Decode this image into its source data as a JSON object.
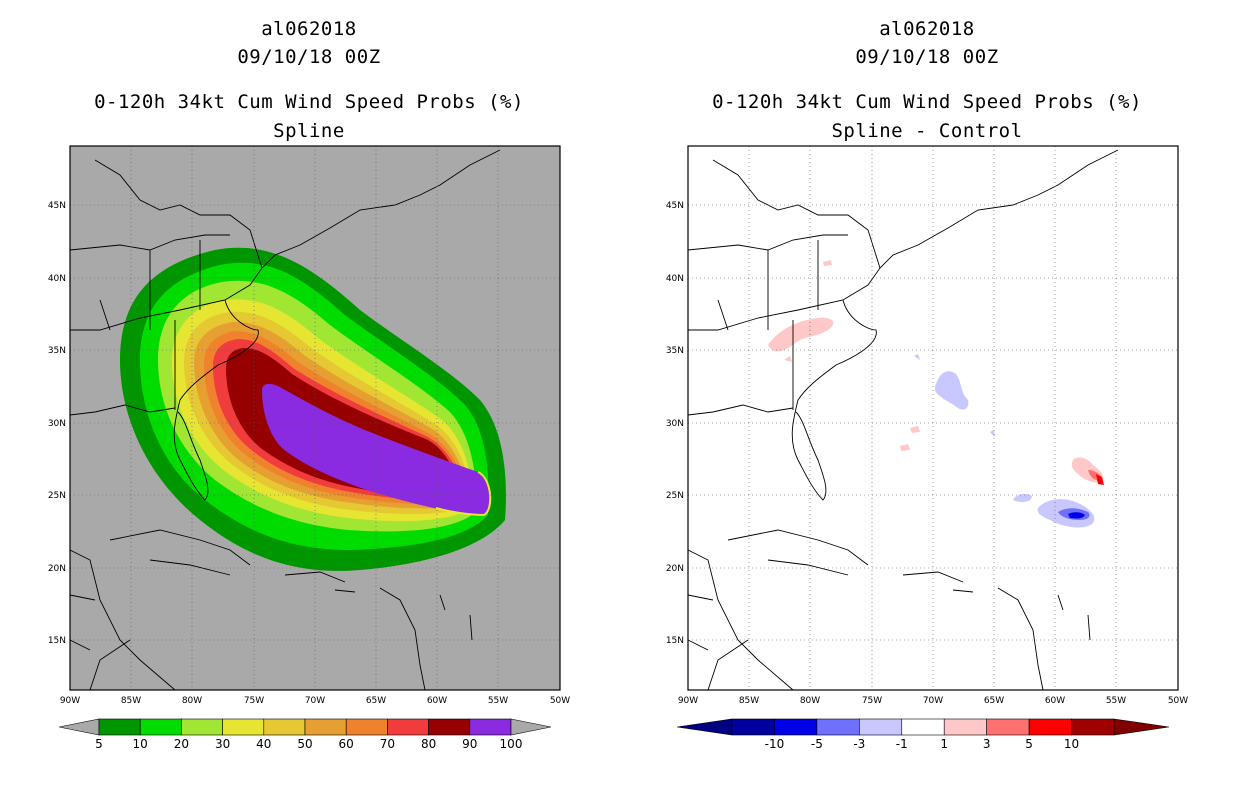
{
  "storm_id": "al062018",
  "datetime": "09/10/18 00Z",
  "left": {
    "product": "0-120h 34kt Cum Wind Speed Probs (%)",
    "subtitle": "Spline",
    "colorbar": {
      "colors": [
        "#009600",
        "#00dc00",
        "#a0e632",
        "#e6e632",
        "#e6c832",
        "#e6a032",
        "#f0822d",
        "#f03c3c",
        "#960000",
        "#8a2be2"
      ],
      "labels": [
        "5",
        "10",
        "20",
        "30",
        "40",
        "50",
        "60",
        "70",
        "80",
        "90",
        "100"
      ]
    }
  },
  "right": {
    "product": "0-120h 34kt Cum Wind Speed Probs (%)",
    "subtitle": "Spline - Control",
    "colorbar": {
      "colors": [
        "#0000a0",
        "#0000e6",
        "#7070ff",
        "#c8c8ff",
        "#ffffff",
        "#ffc8c8",
        "#ff7070",
        "#ff0000",
        "#a00000"
      ],
      "labels": [
        "-10",
        "-5",
        "-3",
        "-1",
        "1",
        "3",
        "5",
        "10"
      ]
    }
  },
  "axes": {
    "lon_labels": [
      "90W",
      "85W",
      "80W",
      "75W",
      "70W",
      "65W",
      "60W",
      "55W",
      "50W"
    ],
    "lat_labels": [
      "15N",
      "20N",
      "25N",
      "30N",
      "35N",
      "40N",
      "45N"
    ]
  }
}
